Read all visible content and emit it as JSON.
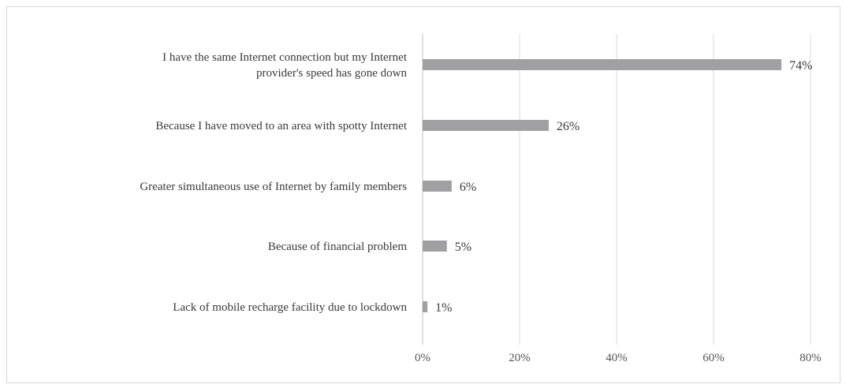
{
  "chart_data": {
    "type": "bar",
    "orientation": "horizontal",
    "title": "",
    "xlabel": "",
    "ylabel": "",
    "categories": [
      [
        "I have the same Internet connection but my Internet",
        "provider's speed has gone down"
      ],
      [
        "Because I have moved to an area with spotty Internet"
      ],
      [
        "Greater simultaneous use of Internet by family members"
      ],
      [
        "Because of financial problem"
      ],
      [
        "Lack of mobile recharge facility due to lockdown"
      ]
    ],
    "values": [
      74,
      26,
      6,
      5,
      1
    ],
    "value_labels": [
      "74%",
      "26%",
      "6%",
      "5%",
      "1%"
    ],
    "xlim": [
      0,
      80
    ],
    "xticks": [
      0,
      20,
      40,
      60,
      80
    ],
    "xtick_labels": [
      "0%",
      "20%",
      "40%",
      "60%",
      "80%"
    ],
    "grid": "vertical",
    "legend": "none",
    "colors": {
      "bar": "#a0a0a2",
      "grid": "#d9d9d9",
      "axis": "#bfbfbf",
      "text": "#3a3a3a",
      "frame": "#d9d9d9"
    }
  }
}
